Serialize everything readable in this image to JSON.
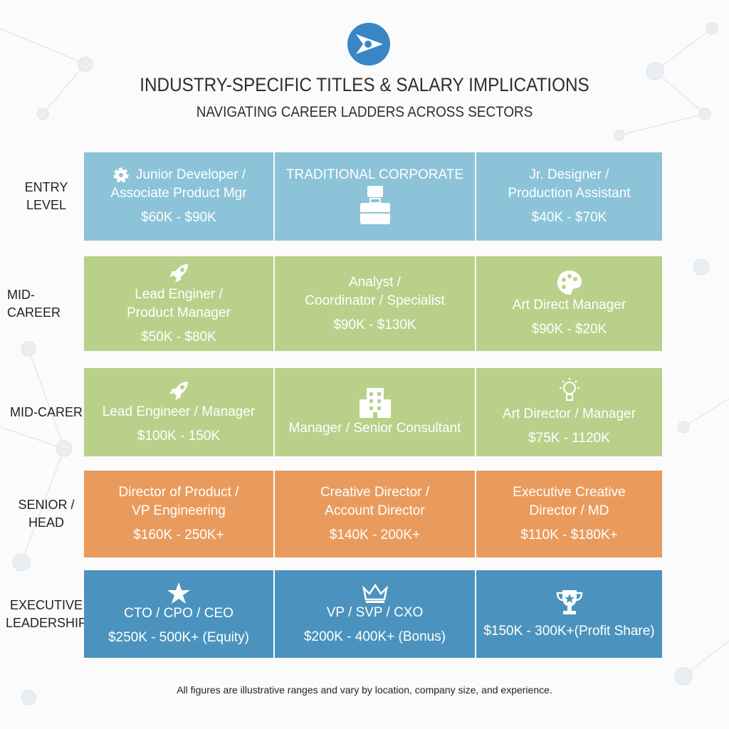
{
  "header": {
    "title": "INDUSTRY-SPECIFIC TITLES & SALARY IMPLICATIONS",
    "subtitle": "NAVIGATING CAREER LADDERS ACROSS SECTORS"
  },
  "rows": [
    {
      "label": [
        "ENTRY",
        "LEVEL"
      ],
      "cells": [
        {
          "title": [
            "Junior Developer /",
            "Associate Product Mgr"
          ],
          "salary": "$60K - $90K"
        },
        {
          "title": [
            "TRADITIONAL CORPORATE"
          ]
        },
        {
          "title": [
            "Jr. Designer /",
            "Production Assistant"
          ],
          "salary": "$40K - $70K"
        }
      ]
    },
    {
      "label": [
        "MID-CAREER"
      ],
      "cells": [
        {
          "title": [
            "Lead Enginer /",
            "Product Manager"
          ],
          "salary": "$50K - $80K"
        },
        {
          "title": [
            "Analyst /",
            "Coordinator / Specialist"
          ],
          "salary": "$90K - $130K"
        },
        {
          "title": [
            "Art Direct Manager"
          ],
          "salary": "$90K - $20K"
        }
      ]
    },
    {
      "label": [
        "MID-CARER"
      ],
      "cells": [
        {
          "title": [
            "Lead Engineer / Manager"
          ],
          "salary": "$100K - 150K"
        },
        {
          "title": [
            "Manager / Senior Consultant"
          ]
        },
        {
          "title": [
            "Art Director / Manager"
          ],
          "salary": "$75K - 1120K"
        }
      ]
    },
    {
      "label": [
        "SENIOR /",
        "HEAD"
      ],
      "cells": [
        {
          "title": [
            "Director of Product /",
            "VP Engineering"
          ],
          "salary": "$160K - 250K+"
        },
        {
          "title": [
            "Creative Director /",
            "Account Director"
          ],
          "salary": "$140K - 200K+"
        },
        {
          "title": [
            "Executive Creative",
            "Director / MD"
          ],
          "salary": "$110K - $180K+"
        }
      ]
    },
    {
      "label": [
        "EXECUTIVE",
        "LEADERSHIP"
      ],
      "cells": [
        {
          "title": [
            "CTO / CPO / CEO"
          ],
          "salary": "$250K - 500K+ (Equity)"
        },
        {
          "title": [
            "VP / SVP / CXO"
          ],
          "salary": "$200K - 400K+ (Bonus)"
        },
        {
          "title": [],
          "salary": "$150K - 300K+(Profit Share)"
        }
      ]
    }
  ],
  "footer": "All figures are illustrative ranges and vary by location, company size, and experience."
}
